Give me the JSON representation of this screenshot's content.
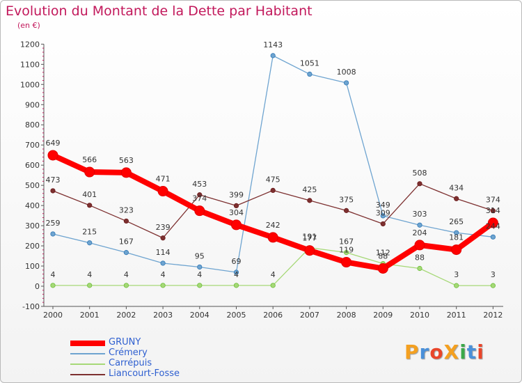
{
  "title": "Evolution du Montant de la Dette par Habitant",
  "unit_label": "(en €)",
  "logo": {
    "text": "ProXiti",
    "letters": [
      {
        "ch": "P",
        "color": "#f4a020"
      },
      {
        "ch": "r",
        "color": "#4a90d9"
      },
      {
        "ch": "o",
        "color": "#e9452a"
      },
      {
        "ch": "X",
        "color": "#f4a020"
      },
      {
        "ch": "i",
        "color": "#3aa84a"
      },
      {
        "ch": "t",
        "color": "#4a90d9"
      },
      {
        "ch": "i",
        "color": "#e9452a"
      }
    ]
  },
  "chart_data": {
    "type": "line",
    "title": "Evolution du Montant de la Dette par Habitant",
    "ylabel": "(en €)",
    "xlabel": "",
    "x": [
      "2000",
      "2001",
      "2002",
      "2003",
      "2004",
      "2005",
      "2006",
      "2007",
      "2008",
      "2009",
      "2010",
      "2011",
      "2012"
    ],
    "ylim": [
      -100,
      1200
    ],
    "yticks": [
      -100,
      0,
      100,
      200,
      300,
      400,
      500,
      600,
      700,
      800,
      900,
      1000,
      1100,
      1200
    ],
    "grid": false,
    "legend_position": "bottom-left",
    "series": [
      {
        "name": "GRUNY",
        "color": "#ff0000",
        "values": [
          649,
          566,
          563,
          471,
          374,
          304,
          242,
          177,
          119,
          88,
          204,
          181,
          314
        ]
      },
      {
        "name": "Crémery",
        "color": "#6ea4d0",
        "values": [
          259,
          215,
          167,
          114,
          95,
          69,
          1143,
          1051,
          1008,
          349,
          303,
          265,
          244
        ]
      },
      {
        "name": "Carrépuis",
        "color": "#a6d877",
        "values": [
          4,
          4,
          4,
          4,
          4,
          4,
          4,
          191,
          167,
          112,
          88,
          3,
          3
        ]
      },
      {
        "name": "Liancourt-Fosse",
        "color": "#7d3030",
        "values": [
          473,
          401,
          323,
          239,
          453,
          399,
          475,
          425,
          375,
          309,
          508,
          434,
          374
        ]
      }
    ]
  }
}
